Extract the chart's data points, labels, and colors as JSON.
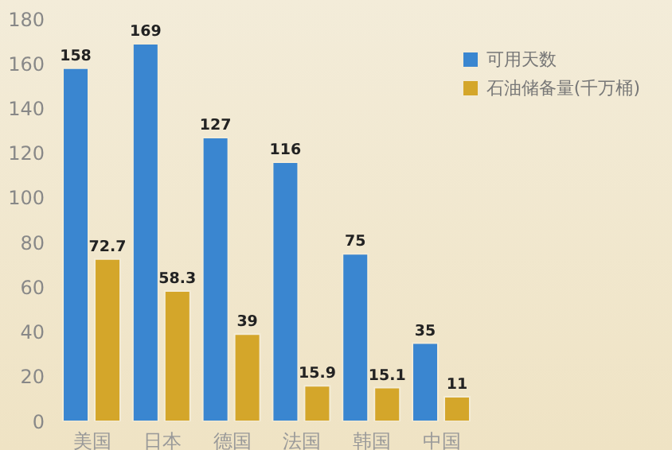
{
  "chart_data": {
    "type": "bar",
    "categories": [
      "美国",
      "日本",
      "德国",
      "法国",
      "韩国",
      "中国"
    ],
    "series": [
      {
        "name": "可用天数",
        "color": "#3a86d0",
        "values": [
          158,
          169,
          127,
          116,
          75,
          35
        ]
      },
      {
        "name": "石油储备量(千万桶)",
        "color": "#d4a62a",
        "values": [
          72.7,
          58.3,
          39,
          15.9,
          15.1,
          11
        ]
      }
    ],
    "ylim": [
      0,
      180
    ],
    "yticks": [
      0,
      20,
      40,
      60,
      80,
      100,
      120,
      140,
      160,
      180
    ],
    "data_labels": true,
    "legend": "top right",
    "grid": false
  }
}
